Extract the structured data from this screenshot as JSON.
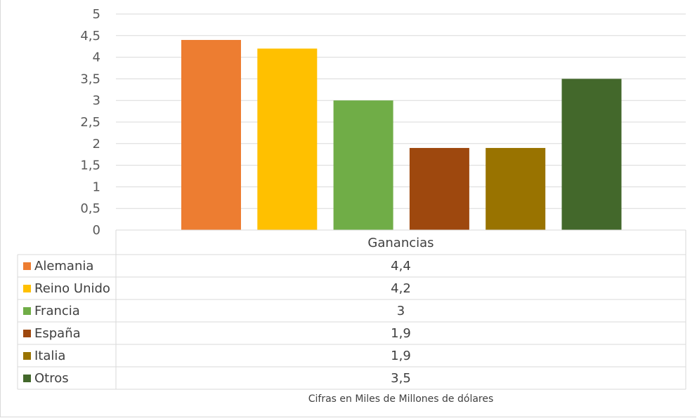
{
  "chart_data": {
    "type": "bar",
    "categories": [
      "Ganancias"
    ],
    "series": [
      {
        "name": "Alemania",
        "values": [
          4.4
        ],
        "color": "#ED7D31"
      },
      {
        "name": "Reino Unido",
        "values": [
          4.2
        ],
        "color": "#FFC000"
      },
      {
        "name": "Francia",
        "values": [
          3
        ],
        "color": "#70AD47"
      },
      {
        "name": "España",
        "values": [
          1.9
        ],
        "color": "#9E480E"
      },
      {
        "name": "Italia",
        "values": [
          1.9
        ],
        "color": "#997300"
      },
      {
        "name": "Otros",
        "values": [
          3.5
        ],
        "color": "#43682B"
      }
    ],
    "value_labels": [
      "4,4",
      "4,2",
      "3",
      "1,9",
      "1,9",
      "3,5"
    ],
    "ylim": [
      0,
      5
    ],
    "yticks": [
      {
        "value": 0,
        "label": "0"
      },
      {
        "value": 0.5,
        "label": "0,5"
      },
      {
        "value": 1,
        "label": "1"
      },
      {
        "value": 1.5,
        "label": "1,5"
      },
      {
        "value": 2,
        "label": "2"
      },
      {
        "value": 2.5,
        "label": "2,5"
      },
      {
        "value": 3,
        "label": "3"
      },
      {
        "value": 3.5,
        "label": "3,5"
      },
      {
        "value": 4,
        "label": "4"
      },
      {
        "value": 4.5,
        "label": "4,5"
      },
      {
        "value": 5,
        "label": "5"
      }
    ],
    "grid": true,
    "data_table": true,
    "xlabel": "Cifras en Miles de Millones de dólares"
  }
}
